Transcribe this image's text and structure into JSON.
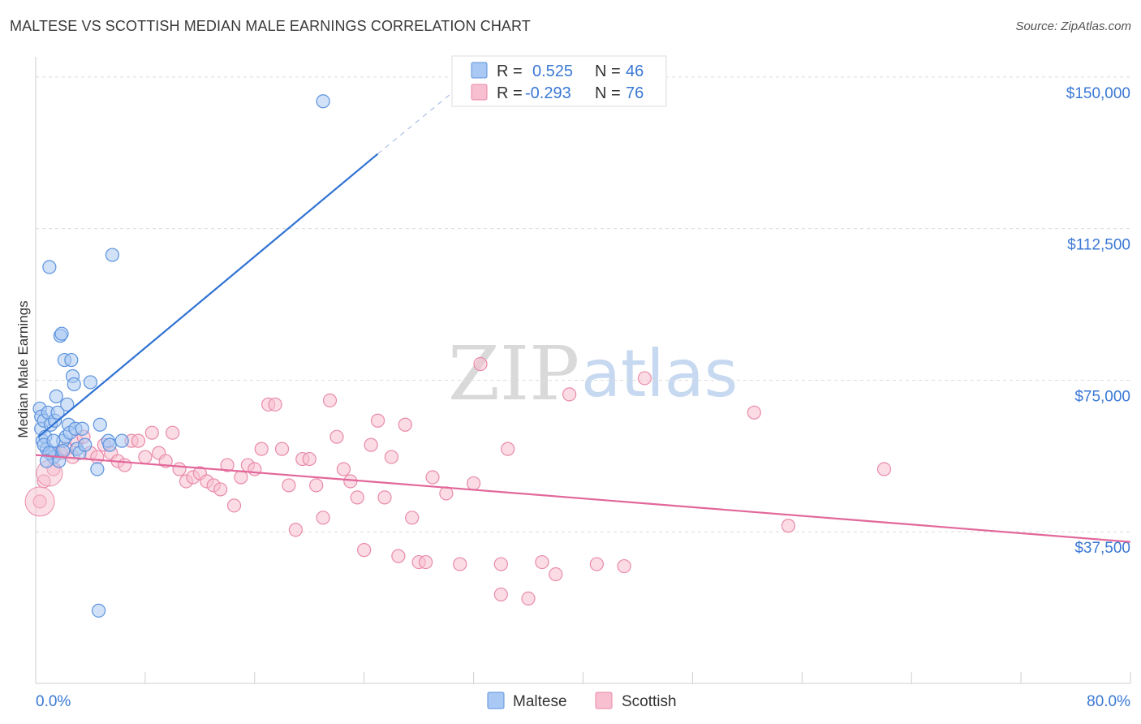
{
  "title": "MALTESE VS SCOTTISH MEDIAN MALE EARNINGS CORRELATION CHART",
  "source": "Source: ZipAtlas.com",
  "watermark": {
    "zip": "ZIP",
    "atlas": "atlas"
  },
  "colors": {
    "maltese_fill": "#a9c8f3",
    "maltese_stroke": "#5b93de",
    "maltese_line": "#2f72d3",
    "scottish_fill": "#f7bfd0",
    "scottish_stroke": "#e98aa9",
    "scottish_line": "#e2679a",
    "grid": "#dcdcdc",
    "axis_label": "#3a78d4"
  },
  "legend": {
    "maltese": {
      "r_label": "R =",
      "r_value": "0.525",
      "n_label": "N =",
      "n_value": "46"
    },
    "scottish": {
      "r_label": "R =",
      "r_value": "-0.293",
      "n_label": "N =",
      "n_value": "76"
    }
  },
  "bottom_legend": {
    "maltese": "Maltese",
    "scottish": "Scottish"
  },
  "chart_data": {
    "type": "scatter",
    "xlabel": "",
    "ylabel": "Median Male Earnings",
    "xlim": [
      0,
      80
    ],
    "ylim": [
      0,
      155000
    ],
    "x_tick_labels": {
      "left": "0.0%",
      "right": "80.0%"
    },
    "y_ticks": [
      {
        "value": 150000,
        "label": "$150,000"
      },
      {
        "value": 112500,
        "label": "$112,500"
      },
      {
        "value": 75000,
        "label": "$75,000"
      },
      {
        "value": 37500,
        "label": "$37,500"
      }
    ],
    "series": [
      {
        "name": "Maltese",
        "trend": {
          "x1": 0.2,
          "y1": 61000,
          "x2": 25,
          "y2": 131000,
          "dash_x2": 32,
          "dash_y2": 150500
        },
        "points": [
          [
            0.3,
            68000
          ],
          [
            0.4,
            66000
          ],
          [
            0.4,
            63000
          ],
          [
            0.5,
            60000
          ],
          [
            0.6,
            65000
          ],
          [
            0.7,
            61000
          ],
          [
            0.8,
            58000
          ],
          [
            0.9,
            67000
          ],
          [
            1.0,
            103000
          ],
          [
            1.1,
            64000
          ],
          [
            1.2,
            57000
          ],
          [
            1.3,
            56000
          ],
          [
            1.4,
            65000
          ],
          [
            1.5,
            71000
          ],
          [
            1.6,
            67000
          ],
          [
            1.7,
            55000
          ],
          [
            1.8,
            86000
          ],
          [
            1.9,
            86500
          ],
          [
            2.0,
            60000
          ],
          [
            2.1,
            80000
          ],
          [
            2.2,
            61000
          ],
          [
            2.3,
            69000
          ],
          [
            2.4,
            64000
          ],
          [
            2.5,
            62000
          ],
          [
            2.6,
            80000
          ],
          [
            2.7,
            76000
          ],
          [
            2.8,
            74000
          ],
          [
            2.9,
            63000
          ],
          [
            3.0,
            58000
          ],
          [
            3.2,
            57000
          ],
          [
            3.4,
            63000
          ],
          [
            3.6,
            59000
          ],
          [
            4.0,
            74500
          ],
          [
            4.5,
            53000
          ],
          [
            4.7,
            64000
          ],
          [
            5.3,
            60000
          ],
          [
            5.4,
            59000
          ],
          [
            5.6,
            106000
          ],
          [
            6.3,
            60000
          ],
          [
            4.6,
            18000
          ],
          [
            0.6,
            59000
          ],
          [
            1.0,
            57000
          ],
          [
            1.3,
            60000
          ],
          [
            2.0,
            57500
          ],
          [
            21.0,
            144000
          ],
          [
            0.8,
            55000
          ]
        ]
      },
      {
        "name": "Scottish",
        "trend": {
          "x1": 0,
          "y1": 56500,
          "x2": 80,
          "y2": 35000
        },
        "points": [
          [
            0.3,
            45000
          ],
          [
            0.6,
            50000
          ],
          [
            1.3,
            53000
          ],
          [
            1.8,
            57000
          ],
          [
            2.2,
            58000
          ],
          [
            2.7,
            56000
          ],
          [
            3.0,
            60000
          ],
          [
            3.5,
            61000
          ],
          [
            4.0,
            57000
          ],
          [
            4.5,
            56000
          ],
          [
            5.0,
            59000
          ],
          [
            5.5,
            57000
          ],
          [
            6.0,
            55000
          ],
          [
            6.5,
            54000
          ],
          [
            7.0,
            60000
          ],
          [
            7.5,
            60000
          ],
          [
            8.0,
            56000
          ],
          [
            8.5,
            62000
          ],
          [
            9.0,
            57000
          ],
          [
            9.5,
            55000
          ],
          [
            10.0,
            62000
          ],
          [
            10.5,
            53000
          ],
          [
            11.0,
            50000
          ],
          [
            11.5,
            51000
          ],
          [
            12.0,
            52000
          ],
          [
            12.5,
            50000
          ],
          [
            13.0,
            49000
          ],
          [
            13.5,
            48000
          ],
          [
            14.0,
            54000
          ],
          [
            14.5,
            44000
          ],
          [
            15.0,
            51000
          ],
          [
            15.5,
            54000
          ],
          [
            16.0,
            53000
          ],
          [
            16.5,
            58000
          ],
          [
            17.0,
            69000
          ],
          [
            17.5,
            69000
          ],
          [
            18.0,
            58000
          ],
          [
            18.5,
            49000
          ],
          [
            19.0,
            38000
          ],
          [
            19.5,
            55500
          ],
          [
            20.0,
            55500
          ],
          [
            20.5,
            49000
          ],
          [
            21.0,
            41000
          ],
          [
            21.5,
            70000
          ],
          [
            22.0,
            61000
          ],
          [
            22.5,
            53000
          ],
          [
            23.0,
            50000
          ],
          [
            23.5,
            46000
          ],
          [
            24.0,
            33000
          ],
          [
            24.5,
            59000
          ],
          [
            25.0,
            65000
          ],
          [
            25.5,
            46000
          ],
          [
            26.0,
            56000
          ],
          [
            26.5,
            31500
          ],
          [
            27.0,
            64000
          ],
          [
            27.5,
            41000
          ],
          [
            28.0,
            30000
          ],
          [
            28.5,
            30000
          ],
          [
            29.0,
            51000
          ],
          [
            30.0,
            47000
          ],
          [
            31.0,
            29500
          ],
          [
            32.0,
            49500
          ],
          [
            32.5,
            79000
          ],
          [
            34.0,
            29500
          ],
          [
            34.5,
            58000
          ],
          [
            34.0,
            22000
          ],
          [
            36.0,
            21000
          ],
          [
            37.0,
            30000
          ],
          [
            38.0,
            27000
          ],
          [
            39.0,
            71500
          ],
          [
            41.0,
            29500
          ],
          [
            43.0,
            29000
          ],
          [
            44.5,
            75500
          ],
          [
            52.5,
            67000
          ],
          [
            55.0,
            39000
          ],
          [
            62.0,
            53000
          ]
        ]
      }
    ]
  }
}
